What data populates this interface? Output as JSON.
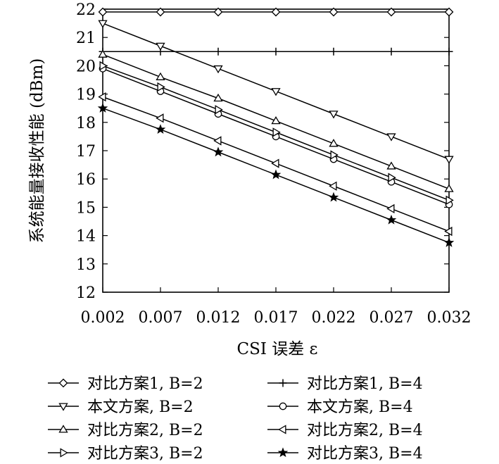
{
  "chart_data": {
    "type": "line",
    "title": "",
    "xlabel": "CSI 误差 ε",
    "ylabel": "系统能量接收性能 (dBm)",
    "x": [
      0.002,
      0.007,
      0.012,
      0.017,
      0.022,
      0.027,
      0.032
    ],
    "x_tick_labels": [
      "0.002",
      "0.007",
      "0.012",
      "0.017",
      "0.022",
      "0.027",
      "0.032"
    ],
    "xlim": [
      0.002,
      0.032
    ],
    "ylim": [
      12,
      22
    ],
    "y_ticks": [
      12,
      13,
      14,
      15,
      16,
      17,
      18,
      19,
      20,
      21,
      22
    ],
    "grid": false,
    "legend_position": "bottom",
    "series": [
      {
        "name": "对比方案1, B=2",
        "marker": "diamond",
        "values": [
          21.9,
          21.9,
          21.9,
          21.9,
          21.9,
          21.9,
          21.9
        ]
      },
      {
        "name": "对比方案1, B=4",
        "marker": "plus",
        "values": [
          20.5,
          20.5,
          20.5,
          20.5,
          20.5,
          20.5,
          20.5
        ]
      },
      {
        "name": "本文方案, B=2",
        "marker": "triangle-down",
        "values": [
          21.5,
          20.7,
          19.9,
          19.1,
          18.3,
          17.5,
          16.7
        ]
      },
      {
        "name": "本文方案, B=4",
        "marker": "circle",
        "values": [
          19.9,
          19.1,
          18.3,
          17.5,
          16.7,
          15.9,
          15.1
        ]
      },
      {
        "name": "对比方案2, B=2",
        "marker": "triangle-up",
        "values": [
          20.4,
          19.6,
          18.85,
          18.05,
          17.25,
          16.45,
          15.65
        ]
      },
      {
        "name": "对比方案2, B=4",
        "marker": "triangle-left",
        "values": [
          18.9,
          18.15,
          17.35,
          16.55,
          15.75,
          14.95,
          14.15
        ]
      },
      {
        "name": "对比方案3, B=2",
        "marker": "triangle-right",
        "values": [
          20.0,
          19.25,
          18.45,
          17.65,
          16.85,
          16.05,
          15.25
        ]
      },
      {
        "name": "对比方案3, B=4",
        "marker": "star",
        "values": [
          18.5,
          17.75,
          16.95,
          16.15,
          15.35,
          14.55,
          13.75
        ]
      }
    ]
  }
}
